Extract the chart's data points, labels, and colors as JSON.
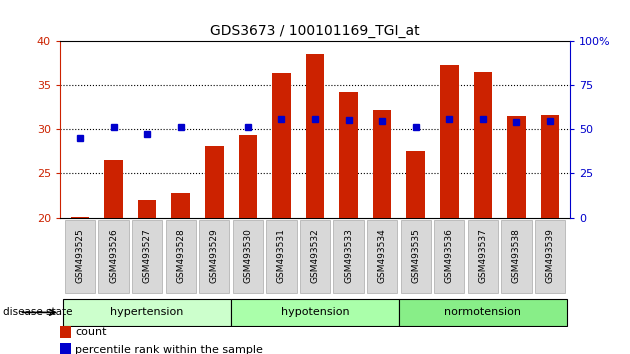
{
  "title": "GDS3673 / 100101169_TGI_at",
  "samples": [
    "GSM493525",
    "GSM493526",
    "GSM493527",
    "GSM493528",
    "GSM493529",
    "GSM493530",
    "GSM493531",
    "GSM493532",
    "GSM493533",
    "GSM493534",
    "GSM493535",
    "GSM493536",
    "GSM493537",
    "GSM493538",
    "GSM493539"
  ],
  "bar_heights": [
    20.1,
    26.5,
    22.0,
    22.8,
    28.1,
    29.4,
    36.3,
    38.5,
    34.2,
    32.2,
    27.5,
    37.3,
    36.5,
    31.5,
    31.6
  ],
  "dot_values": [
    29.0,
    30.2,
    29.5,
    30.3,
    null,
    30.2,
    31.2,
    31.2,
    31.0,
    30.9,
    30.3,
    31.2,
    31.2,
    30.8,
    30.9
  ],
  "bar_color": "#cc2200",
  "dot_color": "#0000cc",
  "ylim_left": [
    20,
    40
  ],
  "ylim_right": [
    0,
    100
  ],
  "yticks_left": [
    20,
    25,
    30,
    35,
    40
  ],
  "yticks_right": [
    0,
    25,
    50,
    75,
    100
  ],
  "ytick_labels_right": [
    "0",
    "25",
    "50",
    "75",
    "100%"
  ],
  "groups": [
    {
      "label": "hypertension",
      "start": 0,
      "end": 5,
      "color": "#ccffcc"
    },
    {
      "label": "hypotension",
      "start": 5,
      "end": 10,
      "color": "#aaffaa"
    },
    {
      "label": "normotension",
      "start": 10,
      "end": 15,
      "color": "#88ee88"
    }
  ],
  "disease_state_label": "disease state",
  "legend_items": [
    {
      "color": "#cc2200",
      "label": "count"
    },
    {
      "color": "#0000cc",
      "label": "percentile rank within the sample"
    }
  ],
  "bar_width": 0.55
}
